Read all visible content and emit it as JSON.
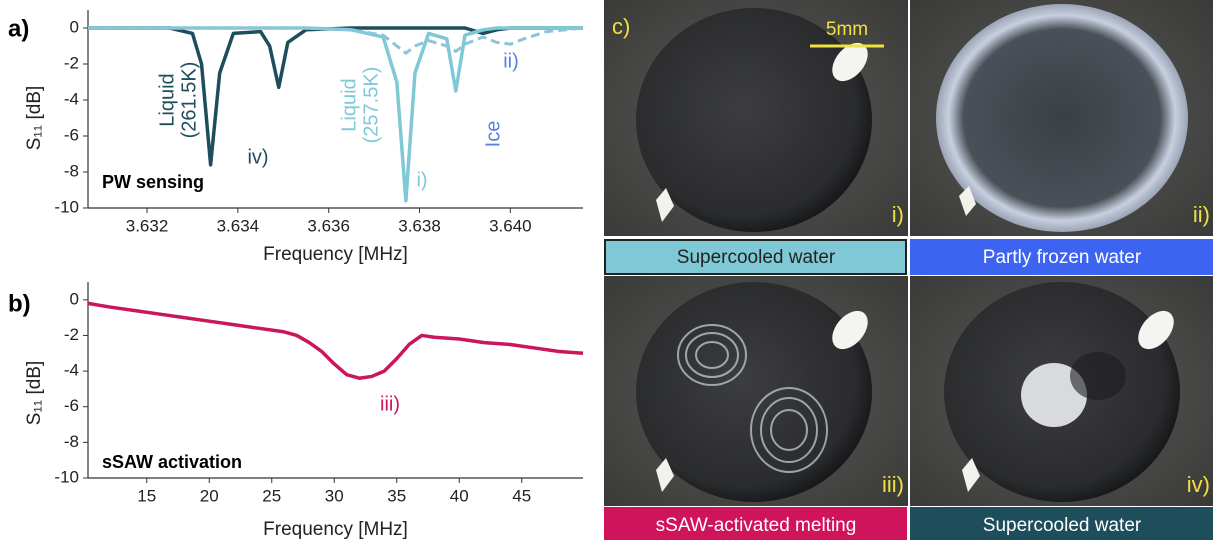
{
  "chart_data": [
    {
      "type": "line",
      "panel_label": "a)",
      "x_label": "Frequency [MHz]",
      "y_label": "S₁₁ [dB]",
      "x": [
        3.6307,
        3.6325,
        3.633,
        3.6332,
        3.6334,
        3.6336,
        3.6339,
        3.6345,
        3.6347,
        3.6349,
        3.6351,
        3.6355,
        3.6365,
        3.6372,
        3.6375,
        3.6377,
        3.6379,
        3.6382,
        3.6386,
        3.6388,
        3.639,
        3.6394,
        3.6397,
        3.64,
        3.6403,
        3.6408,
        3.6416
      ],
      "series": [
        {
          "color": "#1e4d5c",
          "dashed": false,
          "values": [
            0,
            0,
            -0.3,
            -2,
            -7.6,
            -2.5,
            -0.3,
            -0.2,
            -1,
            -3.3,
            -0.8,
            -0.1,
            0,
            0,
            0,
            0,
            0,
            0,
            0,
            0,
            0,
            -0.3,
            -0.1,
            0,
            0,
            0,
            0
          ]
        },
        {
          "color": "#7fc8d6",
          "dashed": false,
          "values": [
            0,
            0,
            0,
            0,
            0,
            0,
            0,
            0,
            0,
            0,
            0,
            0,
            -0.1,
            -0.5,
            -3,
            -9.6,
            -2.5,
            -0.3,
            -0.6,
            -3.5,
            -0.4,
            -0.1,
            0,
            0,
            0,
            0,
            0
          ]
        },
        {
          "color": "#8cc4dc",
          "dashed": true,
          "values": [
            0,
            0,
            0,
            0,
            0,
            0,
            0,
            0,
            0,
            0,
            0,
            0,
            -0.1,
            -0.4,
            -1,
            -1.4,
            -1,
            -0.7,
            -1,
            -1.3,
            -0.9,
            -0.5,
            -0.8,
            -0.9,
            -0.6,
            -0.2,
            0
          ]
        }
      ],
      "annotations": [
        "Liquid",
        "(261.5K)",
        "iv)",
        "Liquid",
        "(257.5K)",
        "i)",
        "Ice",
        "ii)",
        "PW sensing"
      ],
      "xlim": [
        3.6307,
        3.6416
      ],
      "xticks": [
        3.632,
        3.634,
        3.636,
        3.638,
        {
          "value": 3.64,
          "label": "3.640"
        }
      ],
      "ylim": [
        -10,
        1
      ],
      "yticks": [
        0,
        -2,
        -4,
        -6,
        -8,
        -10
      ]
    },
    {
      "type": "line",
      "panel_label": "b)",
      "x_label": "Frequency [MHz]",
      "y_label": "S₁₁ [dB]",
      "x": [
        10.3,
        12,
        14,
        16,
        18,
        20,
        22,
        24,
        26,
        27,
        28,
        29,
        30,
        31,
        32,
        33,
        34,
        35,
        36,
        37,
        38,
        40,
        42,
        44,
        46,
        48,
        49.9
      ],
      "series": [
        {
          "color": "#c8175d",
          "dashed": false,
          "values": [
            -0.2,
            -0.4,
            -0.6,
            -0.8,
            -1.0,
            -1.2,
            -1.4,
            -1.6,
            -1.8,
            -2.0,
            -2.4,
            -2.9,
            -3.6,
            -4.2,
            -4.4,
            -4.3,
            -4.0,
            -3.3,
            -2.5,
            -2.0,
            -2.1,
            -2.2,
            -2.4,
            -2.5,
            -2.7,
            -2.9,
            -3.0
          ]
        }
      ],
      "annotations": [
        "iii)",
        "sSAW activation"
      ],
      "xlim": [
        10.3,
        49.9
      ],
      "xticks": [
        15,
        20,
        25,
        30,
        35,
        40,
        45
      ],
      "ylim": [
        -10,
        1
      ],
      "yticks": [
        0,
        -2,
        -4,
        -6,
        -8,
        -10
      ]
    }
  ],
  "photo_panel": {
    "label": "c)",
    "scale_bar": "5mm",
    "panels": [
      {
        "tag": "i)",
        "caption": "Supercooled water"
      },
      {
        "tag": "ii)",
        "caption": "Partly frozen water"
      },
      {
        "tag": "iii)",
        "caption": "sSAW-activated melting"
      },
      {
        "tag": "iv)",
        "caption": "Supercooled water"
      }
    ]
  }
}
